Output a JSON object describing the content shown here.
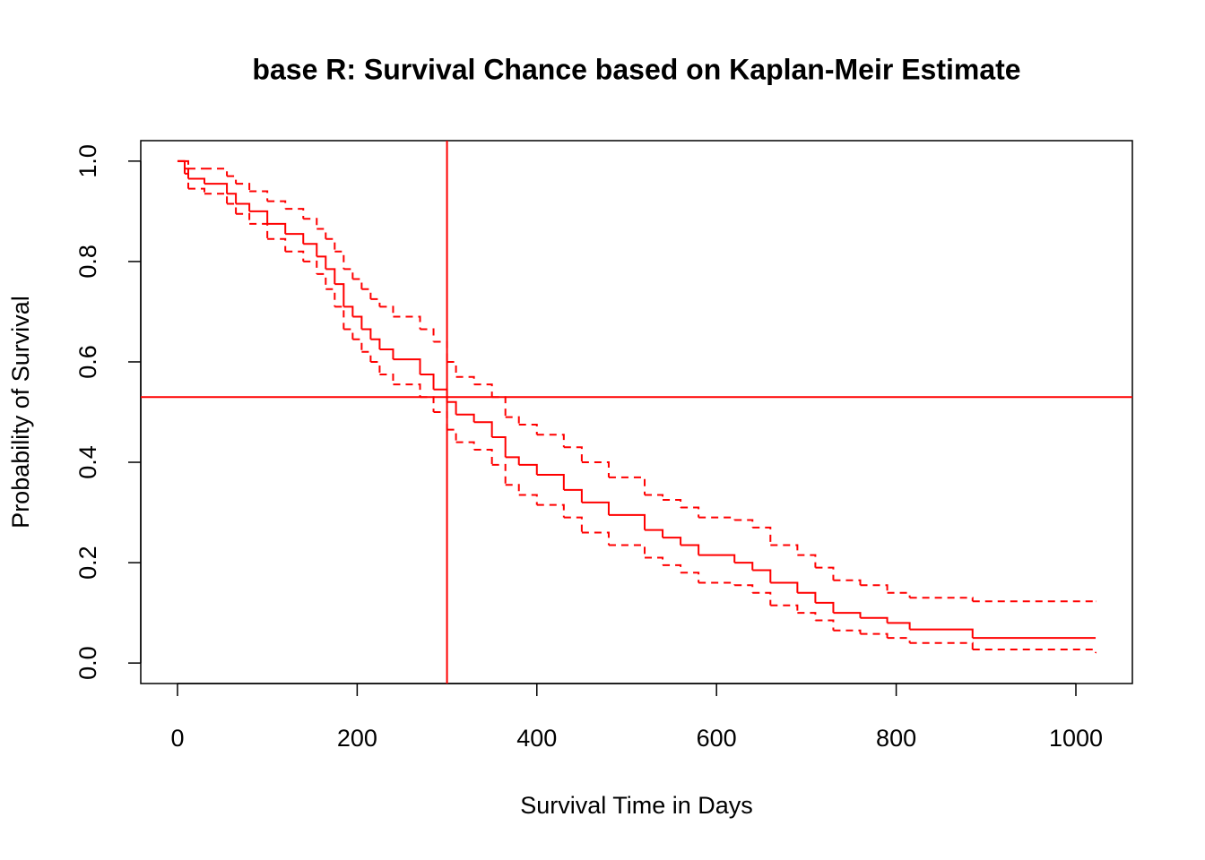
{
  "chart_data": {
    "type": "step",
    "title": "base R: Survival Chance based on Kaplan-Meir Estimate",
    "x_label": "Survival Time in Days",
    "y_label": "Probability of Survival",
    "x": [
      0,
      8,
      12,
      30,
      55,
      65,
      80,
      100,
      120,
      140,
      155,
      165,
      175,
      185,
      195,
      205,
      215,
      225,
      240,
      270,
      285,
      300,
      310,
      330,
      350,
      365,
      380,
      400,
      430,
      450,
      480,
      520,
      540,
      560,
      580,
      620,
      640,
      660,
      690,
      710,
      730,
      760,
      790,
      815,
      885,
      1022
    ],
    "series": [
      {
        "color": "#ff0000",
        "dashed": false,
        "values": [
          1.0,
          0.985,
          0.965,
          0.955,
          0.935,
          0.915,
          0.9,
          0.875,
          0.855,
          0.835,
          0.81,
          0.785,
          0.755,
          0.71,
          0.69,
          0.665,
          0.645,
          0.625,
          0.605,
          0.575,
          0.545,
          0.52,
          0.495,
          0.48,
          0.45,
          0.41,
          0.395,
          0.375,
          0.345,
          0.32,
          0.295,
          0.265,
          0.25,
          0.235,
          0.215,
          0.2,
          0.185,
          0.16,
          0.14,
          0.12,
          0.1,
          0.09,
          0.08,
          0.067,
          0.05,
          0.05
        ]
      },
      {
        "color": "#ff0000",
        "dashed": true,
        "values": [
          1.0,
          1.0,
          0.985,
          0.985,
          0.97,
          0.955,
          0.94,
          0.92,
          0.905,
          0.885,
          0.865,
          0.845,
          0.82,
          0.785,
          0.765,
          0.745,
          0.725,
          0.71,
          0.69,
          0.665,
          0.64,
          0.6,
          0.57,
          0.555,
          0.53,
          0.49,
          0.475,
          0.455,
          0.43,
          0.4,
          0.37,
          0.335,
          0.325,
          0.31,
          0.29,
          0.285,
          0.27,
          0.235,
          0.215,
          0.19,
          0.165,
          0.155,
          0.14,
          0.13,
          0.123,
          0.123
        ]
      },
      {
        "color": "#ff0000",
        "dashed": true,
        "values": [
          1.0,
          0.975,
          0.945,
          0.935,
          0.915,
          0.895,
          0.875,
          0.845,
          0.82,
          0.8,
          0.775,
          0.745,
          0.71,
          0.665,
          0.645,
          0.62,
          0.6,
          0.575,
          0.555,
          0.53,
          0.5,
          0.465,
          0.44,
          0.425,
          0.395,
          0.355,
          0.335,
          0.315,
          0.29,
          0.26,
          0.235,
          0.21,
          0.195,
          0.18,
          0.16,
          0.155,
          0.14,
          0.115,
          0.1,
          0.085,
          0.065,
          0.058,
          0.05,
          0.04,
          0.027,
          0.02
        ]
      }
    ],
    "vline": 300,
    "hline": 0.53,
    "reference_color": "#ff0000",
    "xlim": [
      -40.88,
      1062.88
    ],
    "ylim": [
      -0.0408,
      1.0408
    ],
    "xticks": [
      0,
      200,
      400,
      600,
      800,
      1000
    ],
    "yticks": [
      {
        "value": 0,
        "label": "0.0"
      },
      0.2,
      0.4,
      0.6,
      0.8,
      {
        "value": 1,
        "label": "1.0"
      }
    ]
  }
}
